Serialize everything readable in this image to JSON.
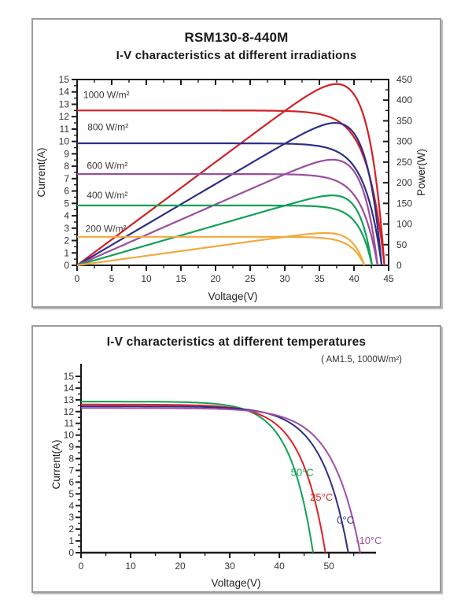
{
  "chart_data": [
    {
      "type": "line",
      "title": "RSM130-8-440M",
      "subtitle": "I-V characteristics at different irradiations",
      "xlabel": "Voltage(V)",
      "ylabel": "Current(A)",
      "ylabel2": "Power(W)",
      "xlim": [
        0,
        45
      ],
      "ylim": [
        0,
        15
      ],
      "y2lim": [
        0,
        450
      ],
      "x_major_step": 5,
      "x_minor_step": 2.5,
      "y_major_step": 1,
      "y_minor_step": 0.5,
      "y2_major_step": 50,
      "y2_minor_step": 25,
      "frame": true,
      "grid": false,
      "axis_color": "#1a1a1a",
      "legend_position": "inside-left-labels",
      "series": [
        {
          "name": "1000 W/m²",
          "color": "#d22027",
          "model": "exp",
          "isc": 12.5,
          "voc": 44.4,
          "knee": 2.5,
          "curves": [
            "current",
            "power"
          ],
          "pmax_w": 439
        },
        {
          "name": "800 W/m²",
          "color": "#2d2f86",
          "model": "exp",
          "isc": 9.85,
          "voc": 44.0,
          "knee": 2.4,
          "curves": [
            "current",
            "power"
          ],
          "pmax_w": 350
        },
        {
          "name": "600 W/m²",
          "color": "#9a4d9d",
          "model": "exp",
          "isc": 7.37,
          "voc": 43.4,
          "knee": 2.3,
          "curves": [
            "current",
            "power"
          ],
          "pmax_w": 260
        },
        {
          "name": "400 W/m²",
          "color": "#12a054",
          "model": "exp",
          "isc": 4.83,
          "voc": 42.6,
          "knee": 1.9,
          "curves": [
            "current",
            "power"
          ],
          "pmax_w": 172
        },
        {
          "name": "200 W/m²",
          "color": "#f2a93c",
          "model": "exp",
          "isc": 2.3,
          "voc": 41.5,
          "knee": 1.9,
          "curves": [
            "current",
            "power"
          ],
          "pmax_w": 80
        }
      ],
      "annotations": [
        {
          "text": "1000 W/m²",
          "x": 0.9,
          "y": 13.75
        },
        {
          "text": "800 W/m²",
          "x": 1.5,
          "y": 11.15
        },
        {
          "text": "600 W/m²",
          "x": 1.4,
          "y": 8.05
        },
        {
          "text": "400 W/m²",
          "x": 1.4,
          "y": 5.65
        },
        {
          "text": "200 W/m²",
          "x": 1.2,
          "y": 2.95
        }
      ]
    },
    {
      "type": "line",
      "title": "I-V characteristics at different temperatures",
      "conditions": "( AM1.5,  1000W/m²)",
      "xlabel": "Voltage(V)",
      "ylabel": "Current(A)",
      "xlim": [
        0,
        59.5
      ],
      "ylim": [
        0,
        15
      ],
      "x_major_step": 10,
      "x_minor_step": 5,
      "x_label_max": 50,
      "y_major_step": 1,
      "y_minor_step": 0.5,
      "frame": false,
      "grid": false,
      "axis_color": "#1a1a1a",
      "series": [
        {
          "name": "50°C",
          "color": "#12a054",
          "model": "diode",
          "isc": 12.85,
          "voc": 46.8,
          "c2": 0.1,
          "curves": [
            "current"
          ]
        },
        {
          "name": "25°C",
          "color": "#e02126",
          "model": "diode",
          "isc": 12.6,
          "voc": 49.3,
          "c2": 0.1,
          "curves": [
            "current"
          ]
        },
        {
          "name": "0°C",
          "color": "#2d2f86",
          "model": "diode",
          "isc": 12.45,
          "voc": 53.9,
          "c2": 0.1,
          "curves": [
            "current"
          ]
        },
        {
          "name": "-10°C",
          "color": "#a04fa5",
          "model": "diode",
          "isc": 12.3,
          "voc": 56.3,
          "c2": 0.1,
          "curves": [
            "current"
          ]
        }
      ],
      "annotations": [
        {
          "text": "50°C",
          "x": 42.3,
          "y": 6.8,
          "color": "#12a054"
        },
        {
          "text": "25°C",
          "x": 46.2,
          "y": 4.7,
          "color": "#e02126"
        },
        {
          "text": "0°C",
          "x": 51.6,
          "y": 2.75,
          "color": "#2d2f86"
        },
        {
          "text": "-10°C",
          "x": 55.4,
          "y": 1.0,
          "color": "#a04fa5"
        }
      ]
    }
  ]
}
